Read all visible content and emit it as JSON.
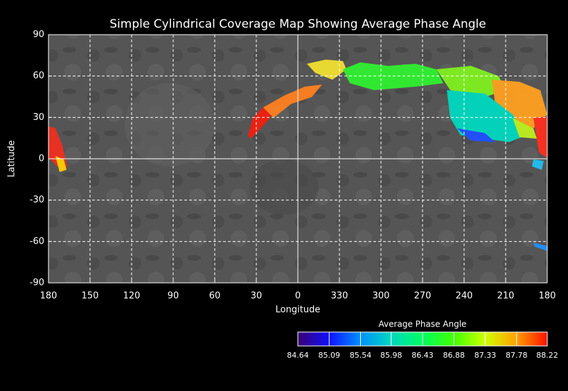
{
  "chart_data": {
    "type": "map",
    "title": "Simple Cylindrical Coverage Map Showing Average Phase Angle",
    "x_label": "Longitude",
    "y_label": "Latitude",
    "xlim": [
      180,
      -180
    ],
    "xticks": [
      180,
      150,
      120,
      90,
      60,
      30,
      0,
      {
        "value": -30,
        "label": "330"
      },
      {
        "value": -60,
        "label": "300"
      },
      {
        "value": -90,
        "label": "270"
      },
      {
        "value": -120,
        "label": "240"
      },
      {
        "value": -150,
        "label": "210"
      },
      {
        "value": -180,
        "label": "180"
      }
    ],
    "ylim": [
      -90,
      90
    ],
    "yticks": [
      90,
      60,
      30,
      0,
      -30,
      -60,
      -90
    ],
    "grid": true,
    "colorbar": {
      "title": "Average Phase Angle",
      "lim": [
        84.64,
        88.22
      ],
      "ticks": [
        84.64,
        85.09,
        85.54,
        85.98,
        86.43,
        86.88,
        87.33,
        87.78,
        88.22
      ],
      "colors": [
        "#3a0070",
        "#1010ff",
        "#0090ff",
        "#00d8c0",
        "#00ff60",
        "#40ff00",
        "#d0ff00",
        "#ffa000",
        "#ff1000"
      ]
    }
  }
}
